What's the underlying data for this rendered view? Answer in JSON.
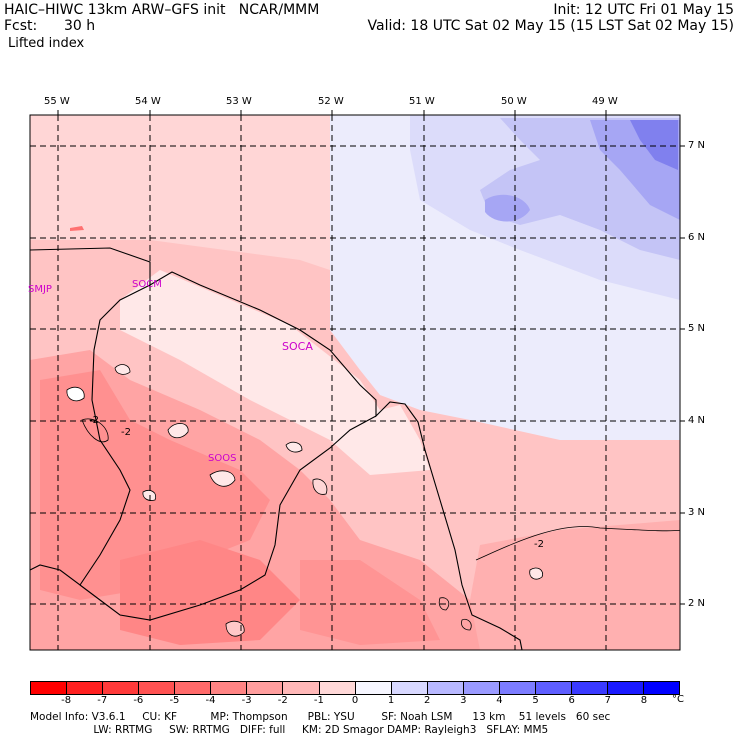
{
  "header": {
    "title_left": "HAIC–HIWC 13km ARW–GFS init   NCAR/MMM",
    "fcst_label": "Fcst:",
    "fcst_value": "30 h",
    "field": "Lifted index",
    "init": "Init: 12 UTC Fri 01 May 15",
    "valid": "Valid: 18 UTC Sat 02 May 15 (15 LST Sat 02 May 15)"
  },
  "axes": {
    "lon_labels": [
      "55 W",
      "54 W",
      "53 W",
      "52 W",
      "51 W",
      "50 W",
      "49 W"
    ],
    "lat_labels": [
      "7 N",
      "6 N",
      "5 N",
      "4 N",
      "3 N",
      "2 N"
    ]
  },
  "stations": [
    "SMJP",
    "SOCM",
    "SOCA",
    "SOOS"
  ],
  "contour_labels": [
    "-2",
    "-2",
    "-2"
  ],
  "colorbar": {
    "ticks": [
      "-8",
      "-7",
      "-6",
      "-5",
      "-4",
      "-3",
      "-2",
      "-1",
      "0",
      "1",
      "2",
      "3",
      "4",
      "5",
      "6",
      "7",
      "8"
    ],
    "unit": "°C",
    "colors": [
      "#ff0000",
      "#ff2020",
      "#ff3a3a",
      "#ff5252",
      "#ff6a6a",
      "#ff8484",
      "#ff9e9e",
      "#ffb8b8",
      "#ffd8d8",
      "#f6f6ff",
      "#d8d8ff",
      "#b8b8ff",
      "#9a9aff",
      "#7c7cff",
      "#5e5eff",
      "#3a3aff",
      "#1a1aff",
      "#0000ff"
    ]
  },
  "footer": {
    "line1": "Model Info: V3.6.1     CU: KF          MP: Thompson      PBL: YSU        SF: Noah LSM      13 km    51 levels   60 sec",
    "line2": "                   LW: RRTMG     SW: RRTMG   DIFF: full     KM: 2D Smagor DAMP: Rayleigh3   SFLAY: MM5"
  }
}
